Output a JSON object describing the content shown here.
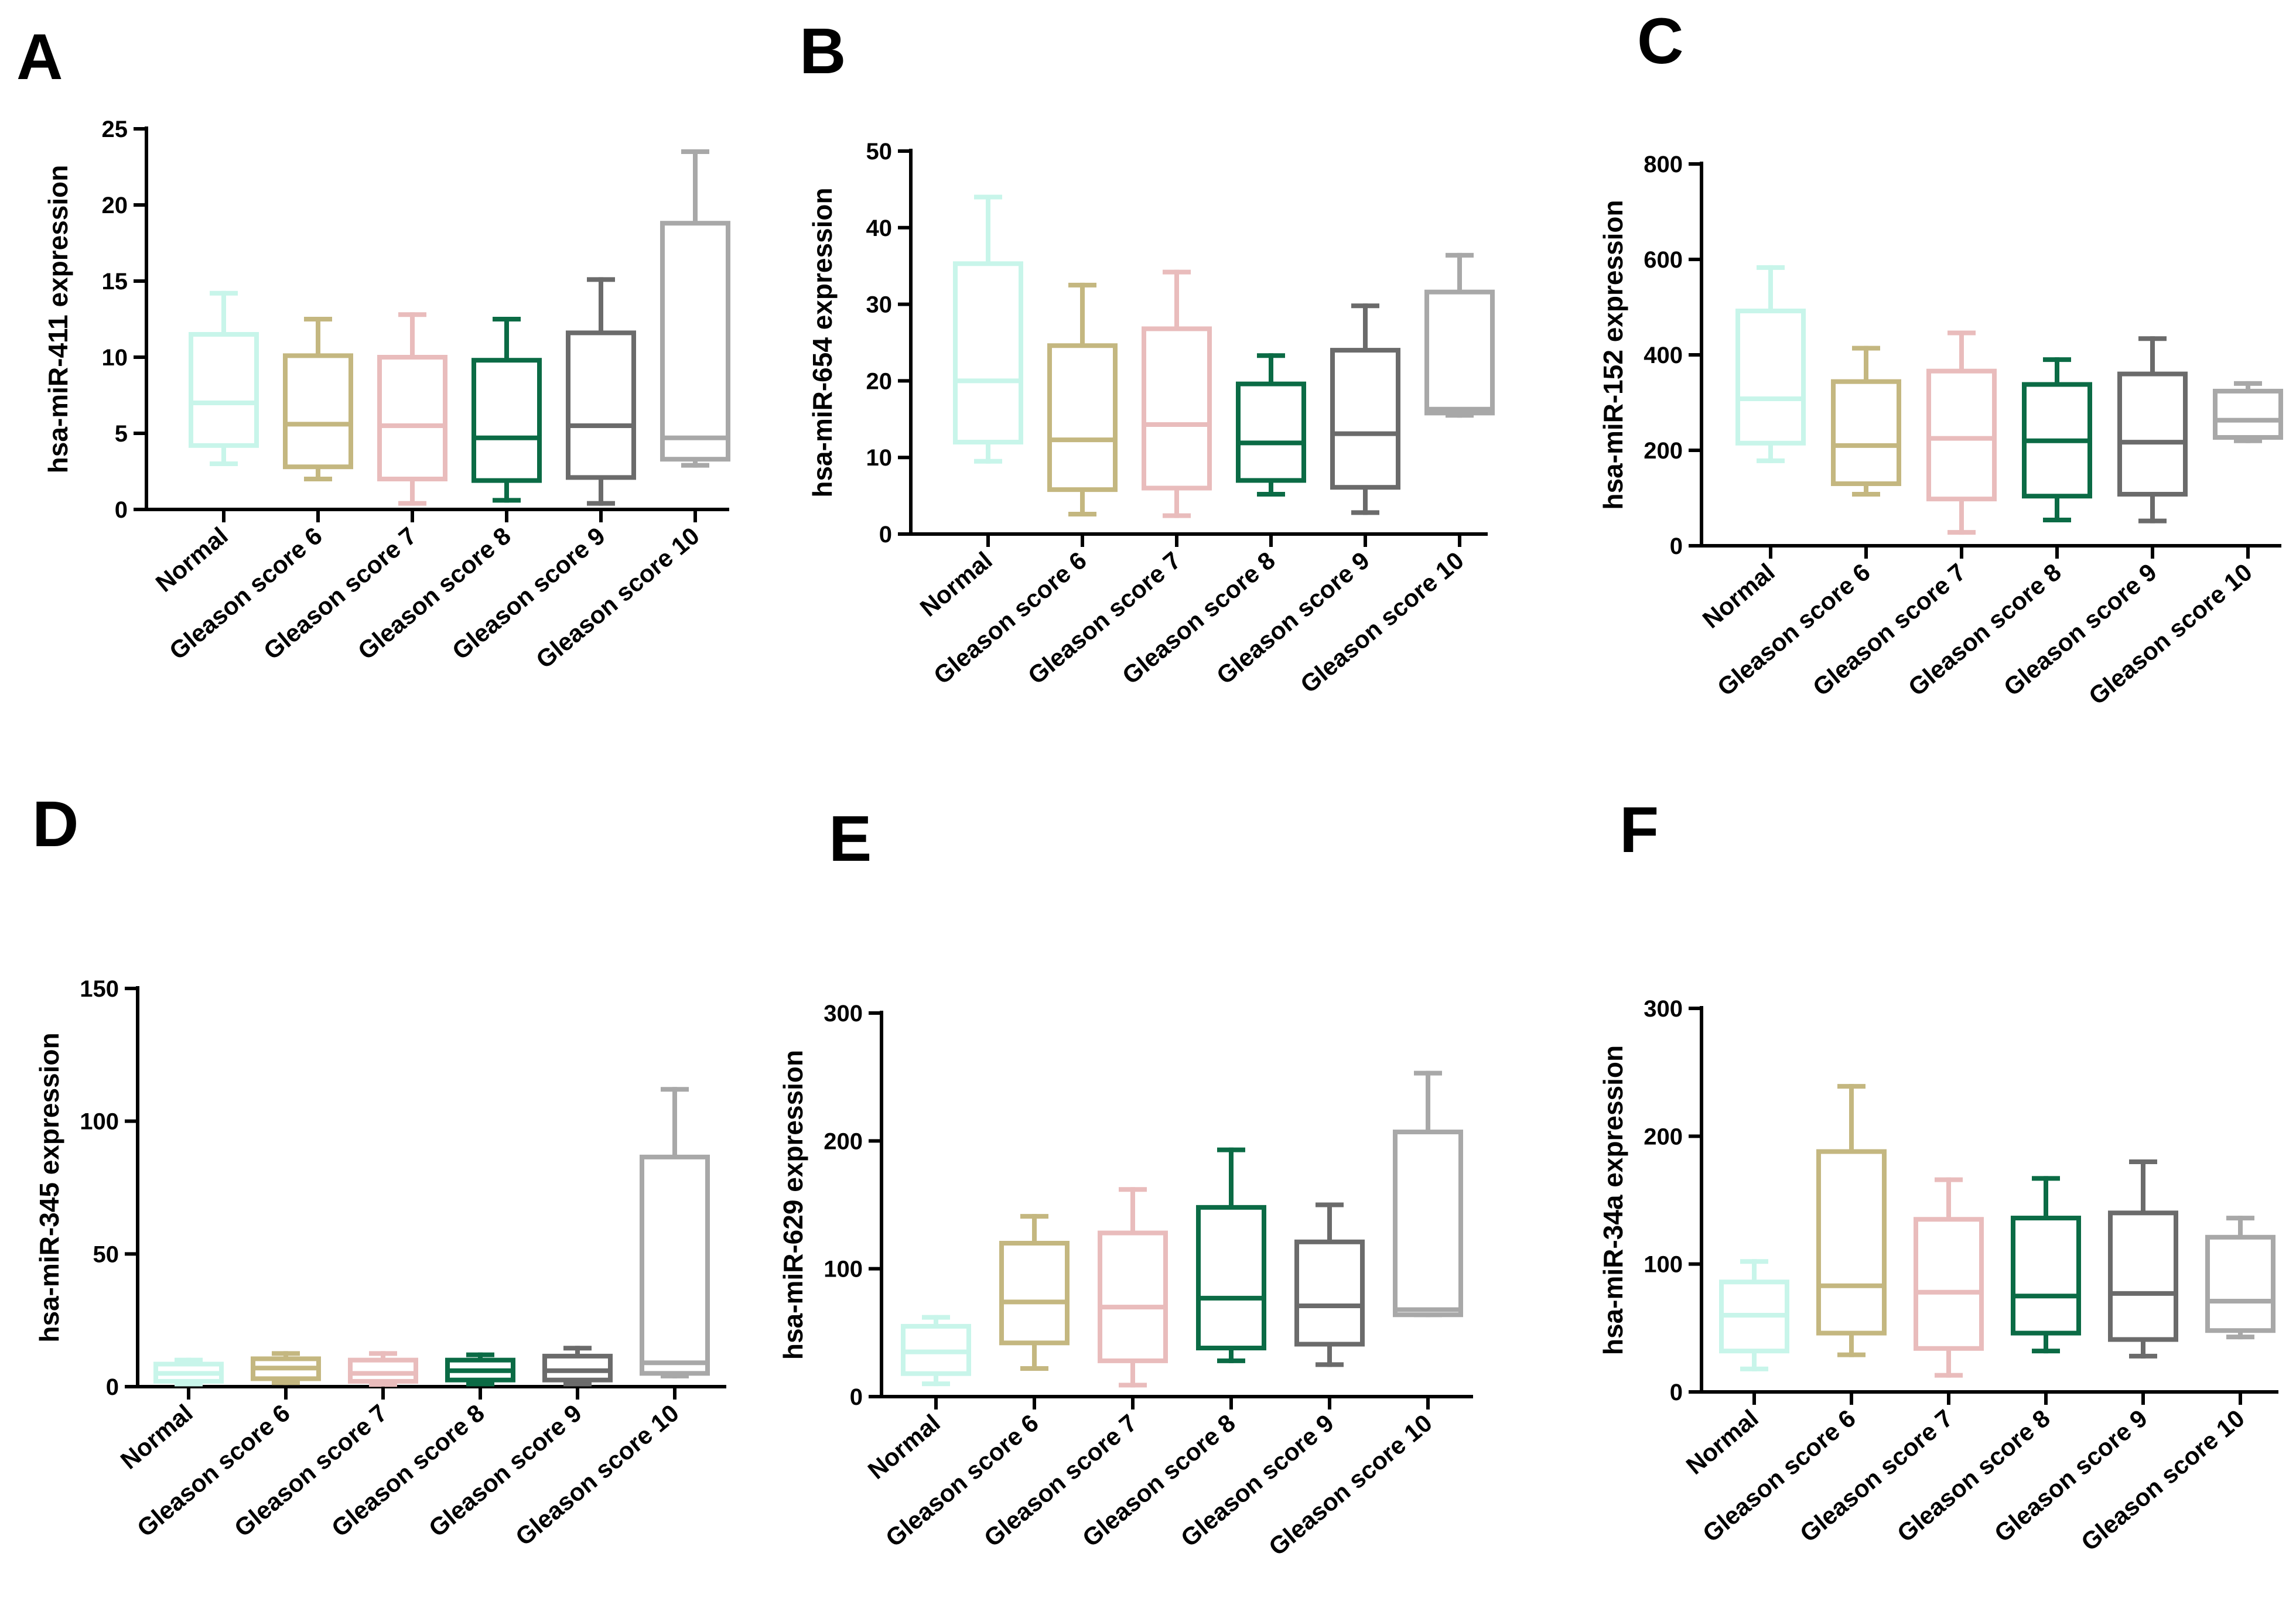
{
  "chart_data": [
    {
      "type": "box",
      "panel": "A",
      "ylabel": "hsa-miR-411 expression",
      "ylim": [
        0,
        25
      ],
      "yticks": [
        "0",
        "5",
        "10",
        "15",
        "20",
        "25"
      ],
      "categories": [
        "Normal",
        "Gleason score 6",
        "Gleason score 7",
        "Gleason score 8",
        "Gleason score 9",
        "Gleason score 10"
      ],
      "boxes": [
        {
          "min": 3,
          "q1": 4.2,
          "median": 7,
          "q3": 11.5,
          "max": 14.2
        },
        {
          "min": 2,
          "q1": 2.8,
          "median": 5.6,
          "q3": 10.1,
          "max": 12.5
        },
        {
          "min": 0.4,
          "q1": 2,
          "median": 5.5,
          "q3": 10,
          "max": 12.8
        },
        {
          "min": 0.6,
          "q1": 1.9,
          "median": 4.7,
          "q3": 9.8,
          "max": 12.5
        },
        {
          "min": 0.4,
          "q1": 2.1,
          "median": 5.5,
          "q3": 11.6,
          "max": 15.1
        },
        {
          "min": 2.9,
          "q1": 3.3,
          "median": 4.7,
          "q3": 18.8,
          "max": 23.5
        }
      ]
    },
    {
      "type": "box",
      "panel": "B",
      "ylabel": "hsa-miR-654 expression",
      "ylim": [
        0,
        50
      ],
      "yticks": [
        "0",
        "10",
        "20",
        "30",
        "40",
        "50"
      ],
      "categories": [
        "Normal",
        "Gleason score 6",
        "Gleason score 7",
        "Gleason score 8",
        "Gleason score 9",
        "Gleason score 10"
      ],
      "boxes": [
        {
          "min": 9.5,
          "q1": 12,
          "median": 20,
          "q3": 35.3,
          "max": 44
        },
        {
          "min": 2.6,
          "q1": 5.8,
          "median": 12.3,
          "q3": 24.6,
          "max": 32.5
        },
        {
          "min": 2.4,
          "q1": 6,
          "median": 14.3,
          "q3": 26.8,
          "max": 34.2
        },
        {
          "min": 5.2,
          "q1": 7,
          "median": 11.9,
          "q3": 19.6,
          "max": 23.3
        },
        {
          "min": 2.8,
          "q1": 6.1,
          "median": 13.1,
          "q3": 24,
          "max": 29.8
        },
        {
          "min": 15.5,
          "q1": 15.8,
          "median": 16.3,
          "q3": 31.6,
          "max": 36.4
        }
      ]
    },
    {
      "type": "box",
      "panel": "C",
      "ylabel": "hsa-miR-152 expression",
      "ylim": [
        0,
        800
      ],
      "yticks": [
        "0",
        "200",
        "400",
        "600",
        "800"
      ],
      "categories": [
        "Normal",
        "Gleason score 6",
        "Gleason score 7",
        "Gleason score 8",
        "Gleason score 9",
        "Gleason score 10"
      ],
      "boxes": [
        {
          "min": 178,
          "q1": 215,
          "median": 308,
          "q3": 492,
          "max": 583
        },
        {
          "min": 108,
          "q1": 130,
          "median": 210,
          "q3": 344,
          "max": 414
        },
        {
          "min": 28,
          "q1": 98,
          "median": 225,
          "q3": 366,
          "max": 446
        },
        {
          "min": 54,
          "q1": 104,
          "median": 220,
          "q3": 338,
          "max": 390
        },
        {
          "min": 52,
          "q1": 108,
          "median": 217,
          "q3": 360,
          "max": 434
        },
        {
          "min": 220,
          "q1": 227,
          "median": 263,
          "q3": 324,
          "max": 340
        }
      ]
    },
    {
      "type": "box",
      "panel": "D",
      "ylabel": "hsa-miR-345 expression",
      "ylim": [
        0,
        150
      ],
      "yticks": [
        "0",
        "50",
        "100",
        "150"
      ],
      "categories": [
        "Normal",
        "Gleason score 6",
        "Gleason score 7",
        "Gleason score 8",
        "Gleason score 9",
        "Gleason score 10"
      ],
      "boxes": [
        {
          "min": 1,
          "q1": 2,
          "median": 5,
          "q3": 8.5,
          "max": 10
        },
        {
          "min": 1.5,
          "q1": 3,
          "median": 7,
          "q3": 10.5,
          "max": 12.5
        },
        {
          "min": 0.8,
          "q1": 2,
          "median": 5,
          "q3": 10,
          "max": 12.5
        },
        {
          "min": 1,
          "q1": 2.5,
          "median": 6,
          "q3": 10,
          "max": 12
        },
        {
          "min": 1,
          "q1": 2.5,
          "median": 6,
          "q3": 11.5,
          "max": 14.5
        },
        {
          "min": 4,
          "q1": 5,
          "median": 9,
          "q3": 86.5,
          "max": 112
        }
      ]
    },
    {
      "type": "box",
      "panel": "E",
      "ylabel": "hsa-miR-629 expression",
      "ylim": [
        0,
        300
      ],
      "yticks": [
        "0",
        "100",
        "200",
        "300"
      ],
      "categories": [
        "Normal",
        "Gleason score 6",
        "Gleason score 7",
        "Gleason score 8",
        "Gleason score 9",
        "Gleason score 10"
      ],
      "boxes": [
        {
          "min": 10,
          "q1": 18,
          "median": 35,
          "q3": 55,
          "max": 62
        },
        {
          "min": 22,
          "q1": 42,
          "median": 74,
          "q3": 120,
          "max": 141
        },
        {
          "min": 9,
          "q1": 28,
          "median": 70,
          "q3": 128,
          "max": 162
        },
        {
          "min": 28,
          "q1": 38,
          "median": 77,
          "q3": 148,
          "max": 193
        },
        {
          "min": 25,
          "q1": 41,
          "median": 71,
          "q3": 121,
          "max": 150
        },
        {
          "min": 64,
          "q1": 64,
          "median": 68,
          "q3": 207,
          "max": 253
        }
      ]
    },
    {
      "type": "box",
      "panel": "F",
      "ylabel": "hsa-miR-34a expression",
      "ylim": [
        0,
        300
      ],
      "yticks": [
        "0",
        "100",
        "200",
        "300"
      ],
      "categories": [
        "Normal",
        "Gleason score 6",
        "Gleason score 7",
        "Gleason score 8",
        "Gleason score 9",
        "Gleason score 10"
      ],
      "boxes": [
        {
          "min": 18,
          "q1": 32,
          "median": 60,
          "q3": 86,
          "max": 102
        },
        {
          "min": 29,
          "q1": 46,
          "median": 83,
          "q3": 188,
          "max": 239
        },
        {
          "min": 13,
          "q1": 34,
          "median": 78,
          "q3": 135,
          "max": 166
        },
        {
          "min": 32,
          "q1": 46,
          "median": 75,
          "q3": 136,
          "max": 167
        },
        {
          "min": 28,
          "q1": 41,
          "median": 77,
          "q3": 140,
          "max": 180
        },
        {
          "min": 43,
          "q1": 48,
          "median": 71,
          "q3": 121,
          "max": 136
        }
      ]
    }
  ],
  "series_colors": [
    "#c8f5ea",
    "#c4b780",
    "#e9bcbc",
    "#0b6b45",
    "#6b6b6b",
    "#a8a8a8"
  ]
}
